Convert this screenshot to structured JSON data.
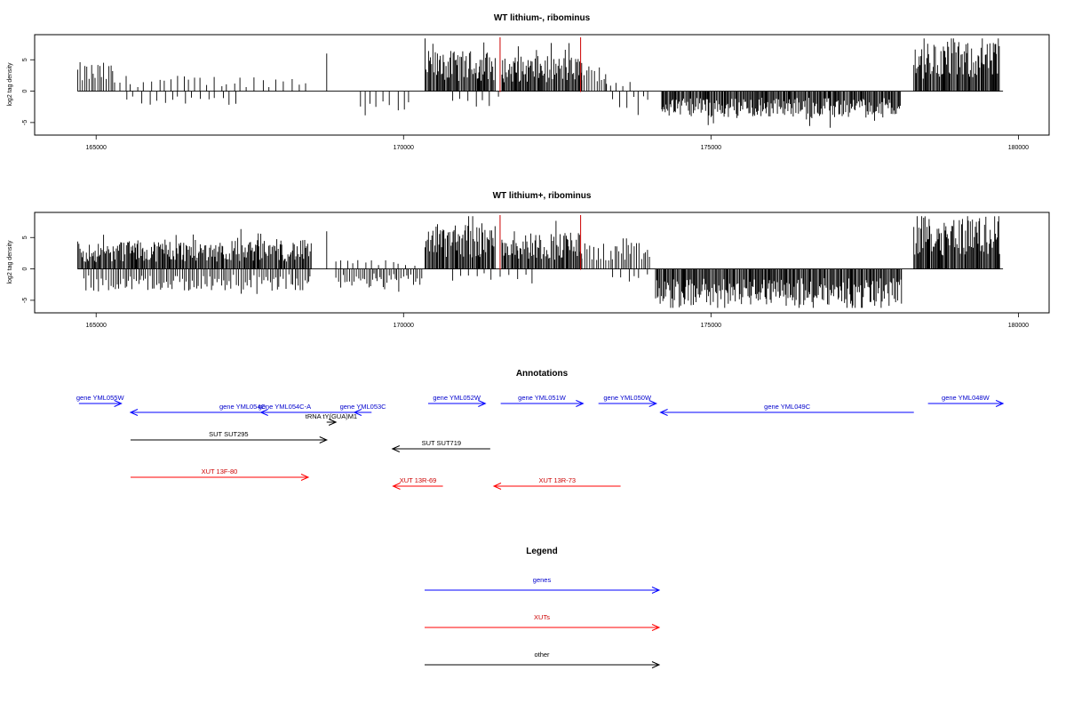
{
  "chart_data": [
    {
      "type": "bar",
      "title": "WT lithium-, ribominus",
      "ylabel": "log2 tag density",
      "xlabel": "",
      "xlim": [
        164000,
        180500
      ],
      "ylim": [
        -7,
        9
      ],
      "x_ticks": [
        165000,
        170000,
        175000,
        180000
      ],
      "x_tick_labels": [
        "165000",
        "170000",
        "175000",
        "180000"
      ],
      "y_ticks": [
        -5,
        0,
        5
      ],
      "y_tick_labels": [
        "-5",
        "0",
        "5"
      ],
      "grid": false,
      "bar_color": "#000000",
      "highlight_color": "#cc0000",
      "highlight_positions": [
        171570,
        172880
      ],
      "signal_regions": [
        {
          "start": 164700,
          "end": 165300,
          "strand": "+",
          "level": 3.3,
          "density": "medium"
        },
        {
          "start": 165300,
          "end": 168500,
          "strand": "+",
          "level": 1.8,
          "density": "sparse"
        },
        {
          "start": 165500,
          "end": 167300,
          "strand": "-",
          "level": 1.8,
          "density": "sparse"
        },
        {
          "start": 168750,
          "end": 168770,
          "strand": "+",
          "level": 6.0,
          "density": "single"
        },
        {
          "start": 169300,
          "end": 170100,
          "strand": "-",
          "level": 2.3,
          "density": "sparse"
        },
        {
          "start": 170350,
          "end": 171500,
          "strand": "+",
          "level": 4.6,
          "density": "dense"
        },
        {
          "start": 170800,
          "end": 171600,
          "strand": "-",
          "level": 1.8,
          "density": "sparse"
        },
        {
          "start": 171600,
          "end": 172900,
          "strand": "+",
          "level": 4.0,
          "density": "dense"
        },
        {
          "start": 172900,
          "end": 173300,
          "strand": "+",
          "level": 3.0,
          "density": "medium"
        },
        {
          "start": 173300,
          "end": 173700,
          "strand": "+",
          "level": 1.5,
          "density": "sparse"
        },
        {
          "start": 173400,
          "end": 174000,
          "strand": "-",
          "level": 2.0,
          "density": "sparse"
        },
        {
          "start": 174200,
          "end": 178100,
          "strand": "-",
          "level": 3.0,
          "density": "dense"
        },
        {
          "start": 178300,
          "end": 179700,
          "strand": "+",
          "level": 5.6,
          "density": "dense"
        }
      ]
    },
    {
      "type": "bar",
      "title": "WT lithium+, ribominus",
      "ylabel": "log2 tag density",
      "xlabel": "",
      "xlim": [
        164000,
        180500
      ],
      "ylim": [
        -7,
        9
      ],
      "x_ticks": [
        165000,
        170000,
        175000,
        180000
      ],
      "x_tick_labels": [
        "165000",
        "170000",
        "175000",
        "180000"
      ],
      "y_ticks": [
        -5,
        0,
        5
      ],
      "y_tick_labels": [
        "-5",
        "0",
        "5"
      ],
      "grid": false,
      "bar_color": "#000000",
      "highlight_color": "#cc0000",
      "highlight_positions": [
        171570,
        172880
      ],
      "signal_regions": [
        {
          "start": 164700,
          "end": 165400,
          "strand": "+",
          "level": 3.0,
          "density": "dense"
        },
        {
          "start": 165400,
          "end": 168500,
          "strand": "+",
          "level": 3.3,
          "density": "dense"
        },
        {
          "start": 164800,
          "end": 168500,
          "strand": "-",
          "level": 2.5,
          "density": "medium"
        },
        {
          "start": 168750,
          "end": 168770,
          "strand": "+",
          "level": 6.0,
          "density": "single"
        },
        {
          "start": 168900,
          "end": 170300,
          "strand": "+",
          "level": 1.0,
          "density": "sparse"
        },
        {
          "start": 168900,
          "end": 170300,
          "strand": "-",
          "level": 2.0,
          "density": "medium"
        },
        {
          "start": 170350,
          "end": 171500,
          "strand": "+",
          "level": 5.2,
          "density": "dense"
        },
        {
          "start": 170800,
          "end": 172100,
          "strand": "-",
          "level": 1.8,
          "density": "sparse"
        },
        {
          "start": 171600,
          "end": 172900,
          "strand": "+",
          "level": 4.2,
          "density": "dense"
        },
        {
          "start": 172900,
          "end": 174000,
          "strand": "+",
          "level": 3.0,
          "density": "medium"
        },
        {
          "start": 173400,
          "end": 174000,
          "strand": "-",
          "level": 1.5,
          "density": "sparse"
        },
        {
          "start": 174100,
          "end": 178100,
          "strand": "-",
          "level": 4.2,
          "density": "dense"
        },
        {
          "start": 178300,
          "end": 179700,
          "strand": "+",
          "level": 6.2,
          "density": "dense"
        }
      ]
    }
  ],
  "annotations": {
    "title": "Annotations",
    "items": [
      {
        "label": "gene YML055W",
        "type": "gene",
        "start": 164720,
        "end": 165410,
        "row": 0,
        "dir": "+"
      },
      {
        "label": "gene YML054C",
        "type": "gene",
        "start": 165560,
        "end": 169200,
        "row": 1,
        "dir": "-"
      },
      {
        "label": "gene YML054C-A",
        "type": "gene",
        "start": 167680,
        "end": 168450,
        "row": 1,
        "dir": "-"
      },
      {
        "label": "gene YML053C",
        "type": "gene",
        "start": 169200,
        "end": 169480,
        "row": 1,
        "dir": "-"
      },
      {
        "label": "tRNA tY(GUA)M1",
        "type": "other",
        "start": 168750,
        "end": 168900,
        "row": 2,
        "dir": "+"
      },
      {
        "label": "gene YML052W",
        "type": "gene",
        "start": 170400,
        "end": 171330,
        "row": 0,
        "dir": "+"
      },
      {
        "label": "gene YML051W",
        "type": "gene",
        "start": 171580,
        "end": 172920,
        "row": 0,
        "dir": "+"
      },
      {
        "label": "gene YML050W",
        "type": "gene",
        "start": 173170,
        "end": 174110,
        "row": 0,
        "dir": "+"
      },
      {
        "label": "gene YML049C",
        "type": "gene",
        "start": 174180,
        "end": 178300,
        "row": 1,
        "dir": "-"
      },
      {
        "label": "gene YML048W",
        "type": "gene",
        "start": 178530,
        "end": 179750,
        "row": 0,
        "dir": "+"
      },
      {
        "label": "SUT SUT295",
        "type": "other",
        "start": 165560,
        "end": 168750,
        "row": 3,
        "dir": "+"
      },
      {
        "label": "SUT SUT719",
        "type": "other",
        "start": 169820,
        "end": 171410,
        "row": 4,
        "dir": "-"
      },
      {
        "label": "XUT 13F-80",
        "type": "xut",
        "start": 165560,
        "end": 168450,
        "row": 5,
        "dir": "+"
      },
      {
        "label": "XUT 13R-69",
        "type": "xut",
        "start": 169830,
        "end": 170640,
        "row": 6,
        "dir": "-"
      },
      {
        "label": "XUT 13R-73",
        "type": "xut",
        "start": 171470,
        "end": 173530,
        "row": 6,
        "dir": "-"
      }
    ]
  },
  "legend": {
    "title": "Legend",
    "items": [
      {
        "label": "genes",
        "type": "gene",
        "color": "#0000ff"
      },
      {
        "label": "XUTs",
        "type": "xut",
        "color": "#ff0000"
      },
      {
        "label": "other",
        "type": "other",
        "color": "#000000"
      }
    ]
  },
  "colors": {
    "gene": "#0000ff",
    "xut": "#ff0000",
    "other": "#000000",
    "gene_label": "#0000cc",
    "xut_label": "#cc0000",
    "other_label": "#000000"
  }
}
